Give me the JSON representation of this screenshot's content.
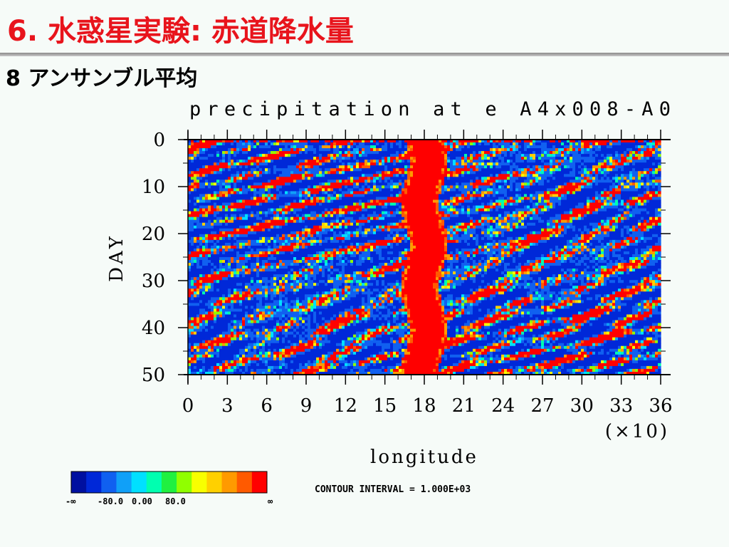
{
  "slide": {
    "title": "6. 水惑星実験: 赤道降水量",
    "subtitle": "8 アンサンブル平均"
  },
  "chart_data": {
    "type": "heatmap",
    "title": "precipitation at e A4x008-A0",
    "xlabel": "longitude",
    "ylabel": "DAY",
    "x_multiplier_label": "(×10)",
    "xlim": [
      0,
      36
    ],
    "ylim": [
      0,
      50
    ],
    "y_inverted": true,
    "x_ticks": [
      0,
      3,
      6,
      9,
      12,
      15,
      18,
      21,
      24,
      27,
      30,
      33,
      36
    ],
    "x_tick_labels": [
      "0",
      "3",
      "6",
      "9",
      "12",
      "15",
      "18",
      "21",
      "24",
      "27",
      "30",
      "33",
      "36"
    ],
    "y_ticks": [
      0,
      10,
      20,
      30,
      40,
      50
    ],
    "y_tick_labels": [
      "0",
      "10",
      "20",
      "30",
      "40",
      "50"
    ],
    "contour_interval_label": "CONTOUR INTERVAL = 1.000E+03",
    "colorbar": {
      "colors": [
        "#0010a0",
        "#0028d8",
        "#1060f0",
        "#10a0f8",
        "#00e0ff",
        "#00ffb0",
        "#20f040",
        "#90ff00",
        "#f8ff00",
        "#ffd000",
        "#ff9a00",
        "#ff5a00",
        "#ff0000"
      ],
      "tick_labels": [
        "-∞",
        "-80.0",
        "0.00",
        "80.0",
        "∞"
      ]
    },
    "features": {
      "equatorial_band_center_x": 18,
      "equatorial_band_half_width": 1.1
    }
  }
}
